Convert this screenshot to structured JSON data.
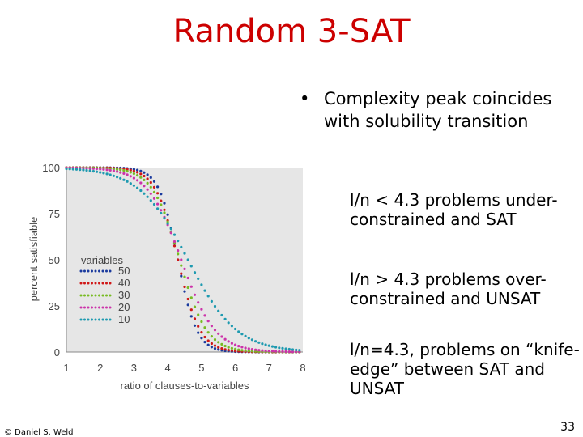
{
  "slide": {
    "title": "Random 3-SAT",
    "bullet_main": "Complexity peak coincides with solubility transition",
    "bullet_marker": "•",
    "sub_bullets": [
      "l/n < 4.3 problems under-constrained and SAT",
      "l/n > 4.3 problems over-constrained and UNSAT",
      "l/n=4.3, problems on “knife-edge” between SAT and UNSAT"
    ],
    "footer": "© Daniel S. Weld",
    "page_number": "33"
  },
  "chart_data": {
    "type": "scatter",
    "xlabel": "ratio of clauses-to-variables",
    "ylabel": "percent satisfiable",
    "xlim": [
      1,
      8
    ],
    "ylim": [
      0,
      100
    ],
    "x_ticks": [
      "1",
      "2",
      "3",
      "4",
      "5",
      "6",
      "7",
      "8"
    ],
    "y_ticks": [
      "0",
      "25",
      "50",
      "75",
      "100"
    ],
    "legend_title": "variables",
    "legend_position": "center-left",
    "colors": {
      "50": "#1a3a9e",
      "40": "#d01717",
      "30": "#77bb22",
      "20": "#cc33aa",
      "10": "#1e9ab0"
    },
    "series": [
      {
        "name": "50",
        "transition": 4.3,
        "width": 0.28
      },
      {
        "name": "40",
        "transition": 4.3,
        "width": 0.33
      },
      {
        "name": "30",
        "transition": 4.35,
        "width": 0.4
      },
      {
        "name": "20",
        "transition": 4.4,
        "width": 0.5
      },
      {
        "name": "10",
        "transition": 4.6,
        "width": 0.72
      }
    ]
  }
}
